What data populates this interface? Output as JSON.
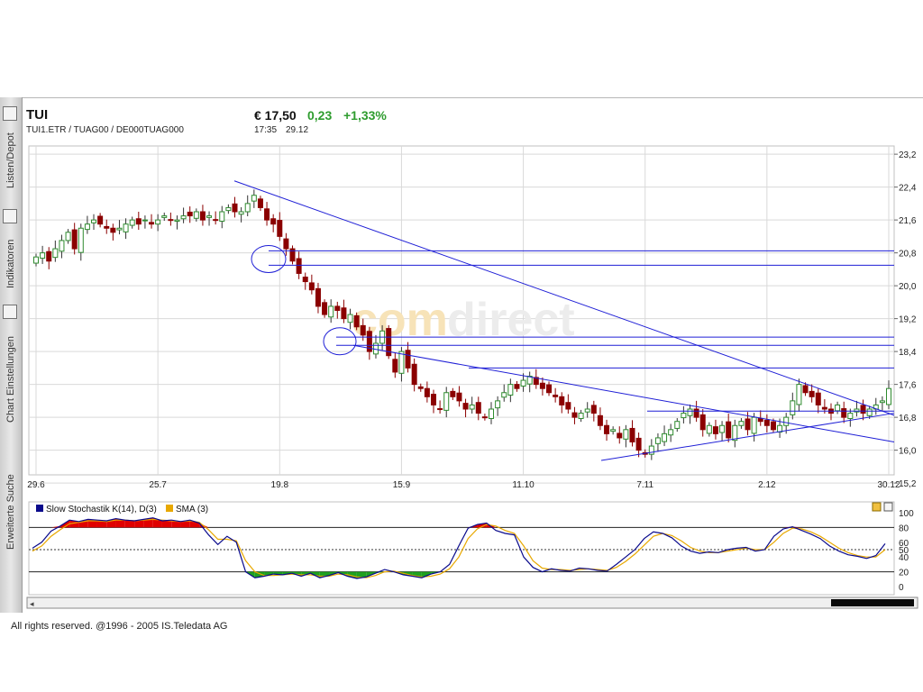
{
  "sidebar": {
    "tabs": [
      {
        "label": "Listen/Depot",
        "icon": "folder-icon"
      },
      {
        "label": "Indikatoren",
        "icon": "bar-chart-icon"
      },
      {
        "label": "Chart Einstellungen",
        "icon": "settings-list-icon"
      },
      {
        "label": "Erweiterte Suche",
        "icon": "search-icon"
      }
    ]
  },
  "header": {
    "name": "TUI",
    "codes": "TUI1.ETR  /  TUAG00  /  DE000TUAG000",
    "price": "€ 17,50",
    "change": "0,23",
    "change_pct": "+1,33%",
    "time": "17:35",
    "date": "29.12"
  },
  "watermark": {
    "part1": "com",
    "part2": "direct"
  },
  "colors": {
    "up": "#2e8b2e",
    "down": "#8b0000",
    "trend": "#1f1fd6",
    "k_line": "#0a0a8c",
    "d_line": "#e8a800",
    "overbought": "#e00000",
    "oversold": "#1fa01f"
  },
  "indicator": {
    "legend_k": "Slow Stochastik K(14), D(3)",
    "legend_d": "SMA (3)"
  },
  "chart_data": [
    {
      "type": "candlestick",
      "y_axis_side": "right",
      "ylim": [
        15.4,
        23.4
      ],
      "yticks": [
        "23,2",
        "22,4",
        "21,6",
        "20,8",
        "20,0",
        "19,2",
        "18,4",
        "17,6",
        "16,8",
        "16,0",
        "15,2"
      ],
      "ytick_values": [
        23.2,
        22.4,
        21.6,
        20.8,
        20.0,
        19.2,
        18.4,
        17.6,
        16.8,
        16.0,
        15.2
      ],
      "xticks": [
        {
          "label": "29.6",
          "index": 0
        },
        {
          "label": "25.7",
          "index": 19
        },
        {
          "label": "19.8",
          "index": 38
        },
        {
          "label": "15.9",
          "index": 57
        },
        {
          "label": "11.10",
          "index": 76
        },
        {
          "label": "7.11",
          "index": 95
        },
        {
          "label": "2.12",
          "index": 114
        },
        {
          "label": "30.12",
          "index": 133
        }
      ],
      "close": [
        20.7,
        20.8,
        20.6,
        20.9,
        21.1,
        21.3,
        20.9,
        21.4,
        21.5,
        21.6,
        21.5,
        21.4,
        21.3,
        21.4,
        21.5,
        21.6,
        21.5,
        21.6,
        21.5,
        21.6,
        21.7,
        21.6,
        21.6,
        21.7,
        21.7,
        21.8,
        21.6,
        21.7,
        21.6,
        21.8,
        21.9,
        21.8,
        21.8,
        22.0,
        22.2,
        21.9,
        21.6,
        21.5,
        21.2,
        20.9,
        20.6,
        20.3,
        20.1,
        19.9,
        19.5,
        19.3,
        19.5,
        19.4,
        19.2,
        19.3,
        19.0,
        18.8,
        18.4,
        18.6,
        18.9,
        18.3,
        17.9,
        18.4,
        18.0,
        17.6,
        17.5,
        17.3,
        17.1,
        17.0,
        17.4,
        17.3,
        17.2,
        17.0,
        17.1,
        16.9,
        16.8,
        17.0,
        17.2,
        17.4,
        17.6,
        17.5,
        17.7,
        17.8,
        17.6,
        17.5,
        17.4,
        17.3,
        17.1,
        17.0,
        16.8,
        16.9,
        17.0,
        16.9,
        16.6,
        16.4,
        16.5,
        16.3,
        16.5,
        16.2,
        16.0,
        15.9,
        16.1,
        16.3,
        16.4,
        16.5,
        16.7,
        16.9,
        17.0,
        16.8,
        16.5,
        16.6,
        16.4,
        16.6,
        16.3,
        16.6,
        16.7,
        16.5,
        16.8,
        16.7,
        16.6,
        16.5,
        16.6,
        16.8,
        17.2,
        17.6,
        17.4,
        17.3,
        17.1,
        17.0,
        16.9,
        17.1,
        16.8,
        16.9,
        17.0,
        16.9,
        17.0,
        17.1,
        17.2,
        17.5
      ],
      "pattern": {
        "triangles_and_horizontal_resistance_lines": [
          20.85,
          20.5,
          18.75,
          18.55,
          18.0
        ]
      }
    },
    {
      "type": "line",
      "title": "Slow Stochastik K(14), D(3)",
      "ylim": [
        0,
        100
      ],
      "yticks": [
        "100",
        "80",
        "60",
        "50",
        "40",
        "20",
        "0"
      ],
      "series": [
        {
          "name": "Slow Stochastik K(14), D(3)",
          "values": [
            52,
            60,
            75,
            82,
            90,
            88,
            91,
            90,
            89,
            92,
            90,
            89,
            91,
            93,
            89,
            90,
            88,
            90,
            86,
            70,
            57,
            68,
            60,
            20,
            12,
            14,
            17,
            16,
            18,
            14,
            18,
            12,
            15,
            19,
            14,
            11,
            13,
            18,
            23,
            20,
            16,
            14,
            12,
            17,
            20,
            30,
            55,
            79,
            84,
            86,
            76,
            72,
            70,
            40,
            26,
            20,
            24,
            22,
            21,
            25,
            24,
            22,
            21,
            30,
            40,
            50,
            65,
            74,
            72,
            66,
            55,
            48,
            45,
            47,
            46,
            50,
            52,
            53,
            48,
            50,
            68,
            78,
            81,
            76,
            71,
            65,
            55,
            48,
            43,
            41,
            38,
            42,
            58
          ]
        },
        {
          "name": "SMA (3)",
          "values": [
            48,
            55,
            68,
            77,
            85,
            87,
            89,
            89,
            88,
            90,
            90,
            89,
            90,
            91,
            90,
            89,
            88,
            89,
            87,
            77,
            64,
            64,
            62,
            35,
            20,
            15,
            15,
            16,
            17,
            16,
            16,
            14,
            14,
            17,
            16,
            13,
            12,
            15,
            20,
            21,
            18,
            15,
            13,
            14,
            17,
            24,
            40,
            65,
            78,
            84,
            82,
            76,
            72,
            55,
            35,
            25,
            23,
            23,
            22,
            23,
            24,
            23,
            22,
            26,
            34,
            44,
            56,
            68,
            72,
            69,
            62,
            53,
            48,
            46,
            46,
            48,
            50,
            52,
            50,
            50,
            60,
            72,
            79,
            78,
            74,
            68,
            60,
            52,
            46,
            42,
            40,
            40,
            50
          ]
        }
      ]
    }
  ],
  "footer": "All rights reserved. @1996 - 2005 IS.Teledata AG"
}
